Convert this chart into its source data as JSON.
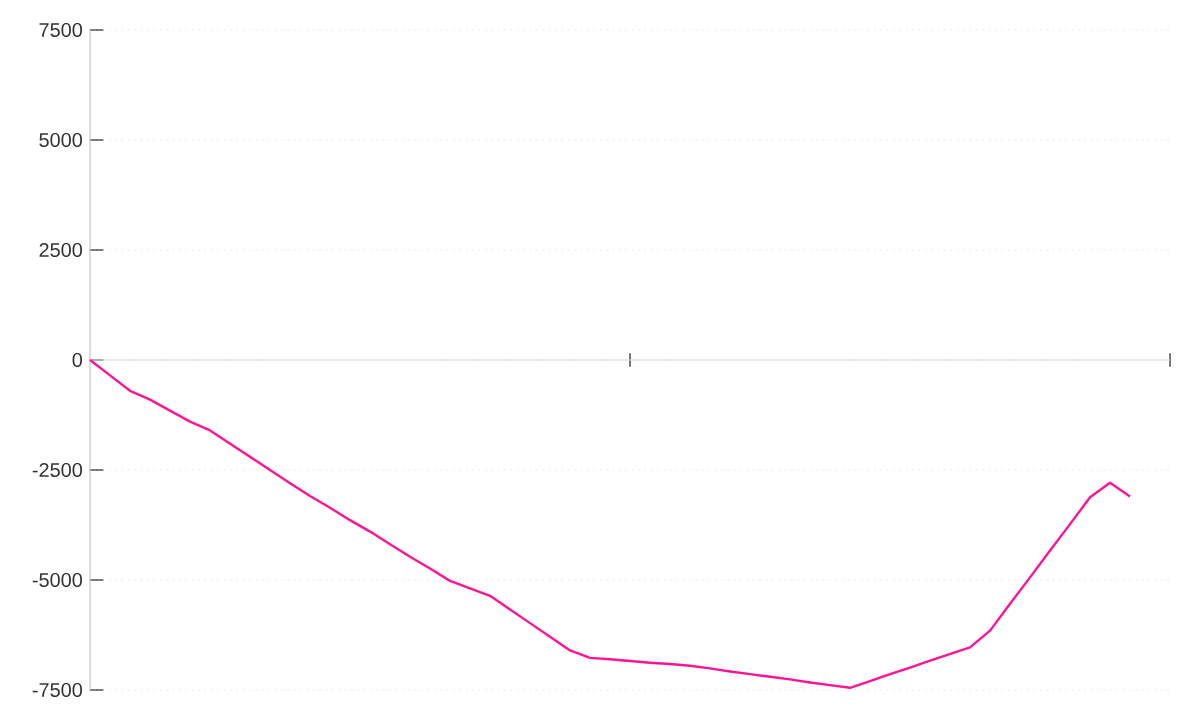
{
  "chart_data": {
    "type": "line",
    "categories": [
      null,
      null,
      null,
      null,
      null,
      null,
      null,
      null,
      null,
      null,
      null,
      null,
      null,
      null,
      null,
      null,
      null,
      null,
      null,
      null,
      null,
      null,
      null,
      null,
      null,
      null,
      null,
      null,
      null,
      null,
      null,
      null,
      null,
      null,
      null,
      null,
      null,
      null,
      null,
      null,
      null,
      null,
      null,
      null,
      null,
      null,
      null,
      null,
      null,
      null,
      null,
      null,
      null
    ],
    "series": [
      {
        "color": "#ff1493",
        "values": [
          0,
          -350,
          -700,
          -900,
          -1150,
          -1400,
          -1600,
          -1900,
          -2200,
          -2500,
          -2800,
          -3090,
          -3360,
          -3640,
          -3900,
          -4190,
          -4470,
          -4740,
          -5020,
          -5190,
          -5360,
          -5670,
          -5980,
          -6290,
          -6600,
          -6770,
          -6800,
          -6840,
          -6880,
          -6910,
          -6950,
          -7010,
          -7080,
          -7140,
          -7200,
          -7260,
          -7330,
          -7390,
          -7450,
          -7300,
          -7140,
          -6990,
          -6830,
          -6680,
          -6530,
          -6150,
          -5540,
          -4940,
          -4330,
          -3730,
          -3120,
          -2790,
          -3100
        ]
      }
    ],
    "ylim": [
      -7500,
      7500
    ],
    "yticks": [
      -7500,
      -5000,
      -2500,
      0,
      2500,
      5000,
      7500
    ],
    "grid": "y",
    "marker": "none",
    "line_style": "solid"
  }
}
